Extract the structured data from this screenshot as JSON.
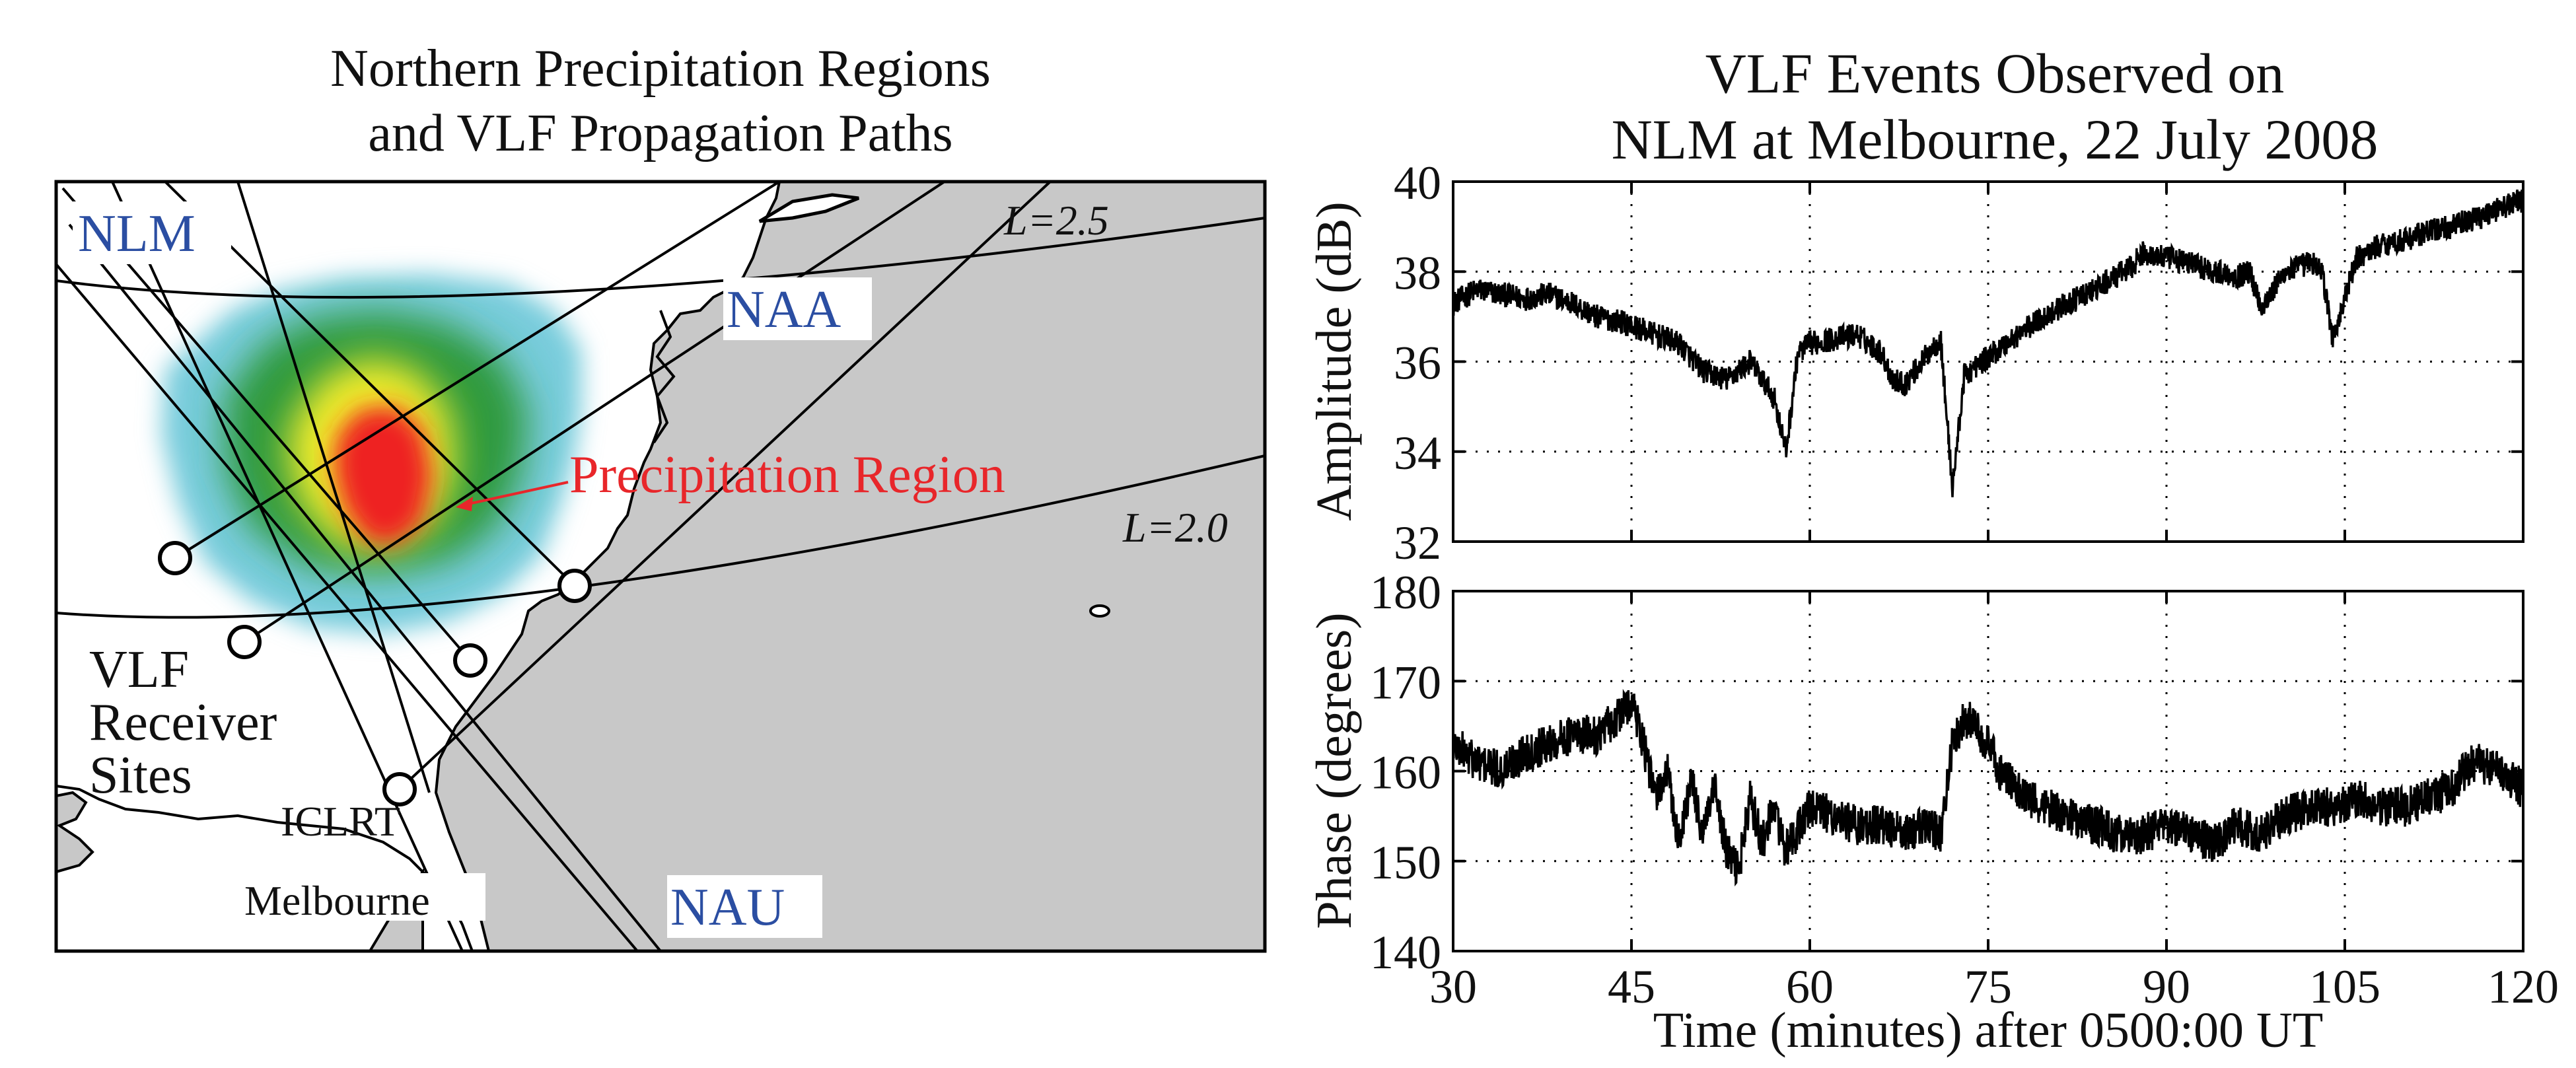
{
  "map": {
    "title_line1": "Northern Precipitation Regions",
    "title_line2": "and VLF Propagation Paths",
    "transmitters": [
      "NLM",
      "NAA",
      "NAU"
    ],
    "l_shells": [
      "L=2.5",
      "L=2.0"
    ],
    "precip_label": "Precipitation Region",
    "receiver_label": [
      "VLF",
      "Receiver",
      "Sites"
    ],
    "site_labels": [
      "ICLRT",
      "Melbourne"
    ],
    "colors": {
      "land": "#c8c8c8",
      "ocean": "#ffffff",
      "transmitter_label": "#2b4ea2",
      "precip_label": "#e8262a",
      "precip_outer": "#78ccdc",
      "precip_mid": "#2f9a3c",
      "precip_inner": "#f2ec2a",
      "precip_core": "#ee2222"
    }
  },
  "chart_data": [
    {
      "type": "line",
      "title": "VLF Events Observed on",
      "subtitle": "NLM at Melbourne, 22 July 2008",
      "ylabel": "Amplitude (dB)",
      "xlim": [
        30,
        120
      ],
      "ylim": [
        32,
        40
      ],
      "yticks": [
        32,
        34,
        36,
        38,
        40
      ],
      "grid": true,
      "series": [
        {
          "x": [
            30,
            32,
            34,
            36,
            38,
            40,
            42,
            44,
            45,
            47,
            49,
            51,
            53,
            55,
            57,
            58,
            59,
            60,
            62,
            64,
            66,
            67,
            68,
            70,
            71,
            72,
            73,
            75,
            78,
            81,
            84,
            87,
            88,
            90,
            92,
            94,
            96,
            97,
            98,
            100,
            102,
            103,
            104,
            106,
            108,
            110,
            112,
            114,
            116,
            118,
            120
          ],
          "y": [
            37.3,
            37.6,
            37.5,
            37.4,
            37.5,
            37.3,
            37.0,
            36.9,
            36.8,
            36.6,
            36.4,
            35.8,
            35.6,
            36.0,
            35.2,
            34.0,
            36.2,
            36.4,
            36.5,
            36.6,
            36.2,
            35.6,
            35.5,
            36.2,
            36.5,
            33.2,
            35.7,
            36.1,
            36.7,
            37.2,
            37.6,
            38.1,
            38.4,
            38.3,
            38.2,
            38.0,
            37.9,
            38.0,
            37.2,
            38.0,
            38.2,
            38.1,
            36.5,
            38.3,
            38.6,
            38.7,
            38.9,
            39.0,
            39.2,
            39.4,
            39.6
          ]
        }
      ]
    },
    {
      "type": "line",
      "ylabel": "Phase (degrees)",
      "xlabel": "Time (minutes) after 0500:00 UT",
      "xlim": [
        30,
        120
      ],
      "ylim": [
        140,
        180
      ],
      "xticks": [
        30,
        45,
        60,
        75,
        90,
        105,
        120
      ],
      "yticks": [
        140,
        150,
        160,
        170,
        180
      ],
      "grid": true,
      "series": [
        {
          "x": [
            30,
            32,
            34,
            36,
            38,
            40,
            42,
            44,
            45,
            46,
            47,
            48,
            49,
            50,
            51,
            52,
            53,
            54,
            55,
            56,
            57,
            58,
            60,
            62,
            64,
            66,
            68,
            70,
            71,
            72,
            73,
            74,
            75,
            76,
            78,
            80,
            82,
            84,
            86,
            88,
            90,
            92,
            94,
            96,
            98,
            100,
            102,
            104,
            106,
            108,
            110,
            112,
            114,
            115,
            116,
            118,
            120
          ],
          "y": [
            163,
            161,
            160,
            162,
            163,
            164,
            164,
            166,
            168,
            163,
            157,
            160,
            152,
            159,
            153,
            158,
            151,
            149,
            157,
            152,
            156,
            151,
            156,
            155,
            154,
            154,
            153,
            154,
            153,
            163,
            166,
            165,
            163,
            160,
            157,
            156,
            155,
            154,
            153,
            153,
            154,
            153,
            152,
            154,
            153,
            155,
            156,
            156,
            157,
            156,
            156,
            157,
            158,
            160,
            161,
            160,
            158
          ]
        }
      ]
    }
  ]
}
